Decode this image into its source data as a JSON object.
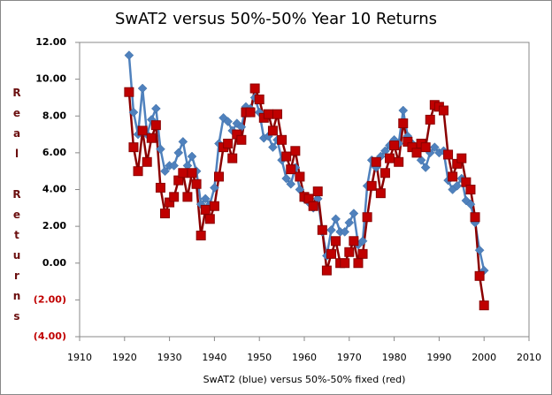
{
  "chart_data": {
    "type": "line",
    "title": "SwAT2 versus 50%-50% Year 10 Returns",
    "x_label": "SwAT2 (blue) versus 50%-50% fixed (red)",
    "y_label": "Real Returns",
    "x": [
      1921,
      1922,
      1923,
      1924,
      1925,
      1926,
      1927,
      1928,
      1929,
      1930,
      1931,
      1932,
      1933,
      1934,
      1935,
      1936,
      1937,
      1938,
      1939,
      1940,
      1941,
      1942,
      1943,
      1944,
      1945,
      1946,
      1947,
      1948,
      1949,
      1950,
      1951,
      1952,
      1953,
      1954,
      1955,
      1956,
      1957,
      1958,
      1959,
      1960,
      1961,
      1962,
      1963,
      1964,
      1965,
      1966,
      1967,
      1968,
      1969,
      1970,
      1971,
      1972,
      1973,
      1974,
      1975,
      1976,
      1977,
      1978,
      1979,
      1980,
      1981,
      1982,
      1983,
      1984,
      1985,
      1986,
      1987,
      1988,
      1989,
      1990,
      1991,
      1992,
      1993,
      1994,
      1995,
      1996,
      1997,
      1998,
      1999,
      2000
    ],
    "series": [
      {
        "color": "#4f81bd",
        "marker": "diamond",
        "values": [
          11.3,
          8.2,
          7.0,
          9.5,
          7.0,
          7.8,
          8.4,
          6.2,
          5.0,
          5.3,
          5.3,
          6.0,
          6.6,
          5.3,
          5.8,
          5.0,
          3.2,
          3.5,
          3.2,
          4.1,
          6.5,
          7.9,
          7.7,
          7.2,
          7.6,
          7.4,
          8.5,
          8.4,
          9.0,
          8.2,
          6.8,
          6.9,
          6.3,
          6.7,
          5.6,
          4.6,
          4.3,
          5.2,
          4.0,
          3.5,
          3.3,
          3.0,
          3.5,
          1.7,
          0.4,
          1.8,
          2.4,
          1.7,
          1.7,
          2.2,
          2.7,
          1.0,
          1.2,
          4.2,
          5.6,
          5.2,
          5.8,
          6.1,
          6.4,
          6.7,
          6.5,
          8.3,
          6.9,
          6.5,
          6.3,
          5.6,
          5.2,
          6.0,
          6.3,
          6.0,
          6.1,
          4.5,
          4.0,
          4.2,
          4.6,
          3.4,
          3.2,
          2.2,
          0.7,
          -0.4
        ]
      },
      {
        "color": "#c00000",
        "marker": "square",
        "values": [
          9.3,
          6.3,
          5.0,
          7.2,
          5.5,
          6.8,
          7.5,
          4.1,
          2.7,
          3.3,
          3.6,
          4.5,
          4.9,
          3.6,
          4.9,
          4.3,
          1.5,
          2.9,
          2.4,
          3.1,
          4.7,
          6.3,
          6.5,
          5.7,
          7.0,
          6.7,
          8.2,
          8.2,
          9.5,
          8.9,
          7.9,
          8.1,
          7.2,
          8.1,
          6.7,
          5.8,
          5.1,
          6.1,
          4.7,
          3.6,
          3.5,
          3.1,
          3.9,
          1.8,
          -0.4,
          0.5,
          1.2,
          0.0,
          0.0,
          0.6,
          1.2,
          0.0,
          0.5,
          2.5,
          4.2,
          5.5,
          3.8,
          4.9,
          5.7,
          6.4,
          5.5,
          7.6,
          6.6,
          6.3,
          6.0,
          6.5,
          6.3,
          7.8,
          8.6,
          8.5,
          8.3,
          5.9,
          4.7,
          5.4,
          5.7,
          4.4,
          4.0,
          2.5,
          -0.7,
          -2.3
        ]
      }
    ],
    "xlim": [
      1910,
      2010
    ],
    "xticks": [
      1910,
      1920,
      1930,
      1940,
      1950,
      1960,
      1970,
      1980,
      1990,
      2000,
      2010
    ],
    "ylim": [
      -4,
      12
    ],
    "yticks": [
      {
        "value": -4,
        "label": "(4.00)"
      },
      {
        "value": -2,
        "label": "(2.00)"
      },
      {
        "value": 0,
        "label": "0.00"
      },
      {
        "value": 2,
        "label": "2.00"
      },
      {
        "value": 4,
        "label": "4.00"
      },
      {
        "value": 6,
        "label": "6.00"
      },
      {
        "value": 8,
        "label": "8.00"
      },
      {
        "value": 10,
        "label": "10.00"
      },
      {
        "value": 12,
        "label": "12.00"
      }
    ],
    "grid": false
  }
}
